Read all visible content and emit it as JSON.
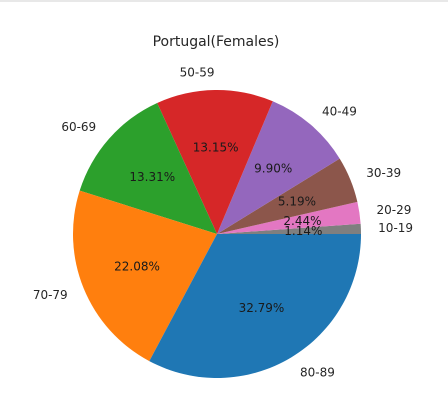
{
  "chart_data": {
    "type": "pie",
    "title": "Portugal(Females)",
    "slices": [
      {
        "label": "10-19",
        "value": 1.14,
        "pct_label": "1.14%",
        "color": "#7f7f7f"
      },
      {
        "label": "20-29",
        "value": 2.44,
        "pct_label": "2.44%",
        "color": "#e377c2"
      },
      {
        "label": "30-39",
        "value": 5.19,
        "pct_label": "5.19%",
        "color": "#8c564b"
      },
      {
        "label": "40-49",
        "value": 9.9,
        "pct_label": "9.90%",
        "color": "#9467bd"
      },
      {
        "label": "50-59",
        "value": 13.15,
        "pct_label": "13.15%",
        "color": "#d62728"
      },
      {
        "label": "60-69",
        "value": 13.31,
        "pct_label": "13.31%",
        "color": "#2ca02c"
      },
      {
        "label": "70-79",
        "value": 22.08,
        "pct_label": "22.08%",
        "color": "#ff7f0e"
      },
      {
        "label": "80-89",
        "value": 32.79,
        "pct_label": "32.79%",
        "color": "#1f77b4"
      }
    ],
    "start_angle_deg": 0,
    "direction": "counterclockwise"
  }
}
